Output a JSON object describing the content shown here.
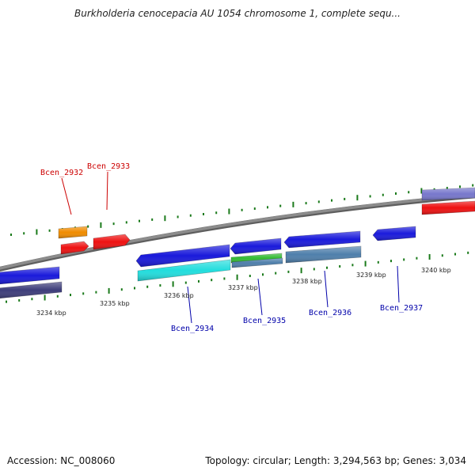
{
  "title": "Burkholderia cenocepacia AU 1054 chromosome 1, complete sequ...",
  "footer": {
    "accession": "Accession: NC_008060",
    "topology": "Topology: circular; Length: 3,294,563 bp; Genes: 3,034"
  },
  "colors": {
    "backbone": "#8c8c8c",
    "tick": "#1a7a1a",
    "label_upper": "#cc0000",
    "label_lower": "#0000aa",
    "gene_blue": "#1a1adb",
    "gene_red": "#ee1111",
    "gene_orange": "#f08c00",
    "gene_cyan": "#22dddd",
    "gene_green": "#33bb33",
    "gene_steel": "#4f7fab",
    "gene_navy": "#3d3d7a",
    "gene_lavender": "#7777cc"
  },
  "scale_labels": [
    "3234 kbp",
    "3235 kbp",
    "3236 kbp",
    "3237 kbp",
    "3238 kbp",
    "3239 kbp",
    "3240 kbp"
  ],
  "gene_labels": [
    {
      "text": "Bcen_2932",
      "color": "label_upper"
    },
    {
      "text": "Bcen_2933",
      "color": "label_upper"
    },
    {
      "text": "Bcen_2934",
      "color": "label_lower"
    },
    {
      "text": "Bcen_2935",
      "color": "label_lower"
    },
    {
      "text": "Bcen_2936",
      "color": "label_lower"
    },
    {
      "text": "Bcen_2937",
      "color": "label_lower"
    }
  ]
}
